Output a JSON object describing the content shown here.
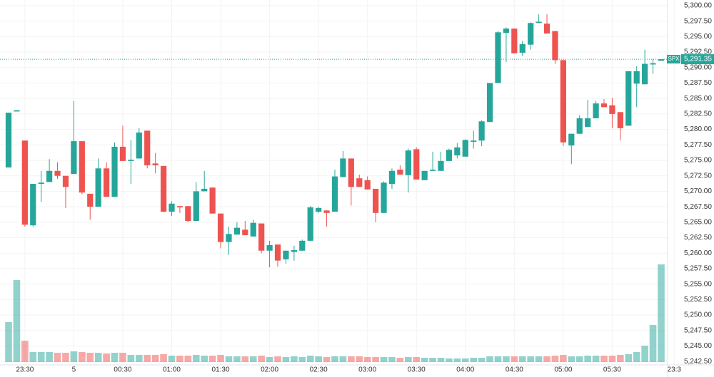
{
  "chart_data": {
    "type": "candlestick",
    "symbol": "SPX",
    "last_price": {
      "value": 5291.35,
      "label": "5,291.35"
    },
    "up_color": "#26a69a",
    "down_color": "#ef5350",
    "grid": true,
    "open": [
      5273.85,
      5282.9,
      5278.2,
      5264.5,
      5271.2,
      5271.5,
      5273.3,
      5272.5,
      5272.8,
      5278.1,
      5269.6,
      5267.5,
      5273.7,
      5269.1,
      5277.2,
      5274.9,
      5275.3,
      5279.8,
      5274.5,
      5274.1,
      5266.7,
      5267.6,
      5267.6,
      5265.2,
      5270.0,
      5270.6,
      5266.4,
      5261.8,
      5263.0,
      5263.8,
      5262.7,
      5264.8,
      5260.4,
      5261.4,
      5259.0,
      5260.2,
      5260.4,
      5262.0,
      5266.7,
      5266.9,
      5266.7,
      5272.3,
      5275.3,
      5272.1,
      5271.8,
      5270.4,
      5266.5,
      5271.2,
      5273.5,
      5272.6,
      5276.8,
      5271.8,
      5273.3,
      5273.3,
      5274.9,
      5275.8,
      5275.6,
      5278.0,
      5278.2,
      5281.2,
      5287.5,
      5295.6,
      5296.3,
      5292.4,
      5293.7,
      5297.2,
      5297.1,
      5295.9,
      5291.2,
      5277.4,
      5279.3,
      5280.4,
      5281.8,
      5284.2,
      5283.9,
      5282.8,
      5280.6,
      5287.4,
      5287.3,
      5290.5,
      5291.1
    ],
    "high": [
      5282.7,
      5283.1,
      5278.2,
      5271.2,
      5273.3,
      5275.2,
      5274.7,
      5272.5,
      5284.6,
      5278.1,
      5269.6,
      5275.3,
      5274.7,
      5277.9,
      5280.6,
      5278.3,
      5280.2,
      5279.8,
      5276.2,
      5274.1,
      5268.4,
      5267.6,
      5267.6,
      5271.5,
      5273.3,
      5270.6,
      5266.4,
      5264.3,
      5265.0,
      5265.2,
      5265.4,
      5264.8,
      5262.0,
      5261.4,
      5260.4,
      5261.2,
      5262.2,
      5267.6,
      5267.5,
      5266.9,
      5273.5,
      5276.5,
      5275.3,
      5272.7,
      5272.4,
      5270.4,
      5271.6,
      5273.7,
      5274.2,
      5276.9,
      5277.1,
      5273.3,
      5276.4,
      5276.4,
      5276.9,
      5277.8,
      5278.4,
      5279.8,
      5281.5,
      5287.5,
      5295.9,
      5296.5,
      5296.3,
      5294.3,
      5297.3,
      5298.6,
      5298.6,
      5295.9,
      5291.2,
      5279.3,
      5282.3,
      5284.8,
      5284.6,
      5284.9,
      5285.1,
      5282.8,
      5289.4,
      5290.2,
      5292.9,
      5291.4,
      5291.35
    ],
    "low": [
      5273.85,
      5282.9,
      5264.3,
      5264.3,
      5268.3,
      5271.5,
      5272.0,
      5267.3,
      5272.8,
      5269.5,
      5265.4,
      5267.5,
      5269.1,
      5269.1,
      5274.9,
      5271.2,
      5275.3,
      5273.7,
      5272.9,
      5266.6,
      5266.0,
      5266.5,
      5265.0,
      5265.2,
      5270.0,
      5266.4,
      5260.8,
      5259.7,
      5263.0,
      5262.9,
      5262.7,
      5260.0,
      5257.7,
      5257.8,
      5258.3,
      5258.8,
      5260.4,
      5262.0,
      5266.5,
      5264.3,
      5266.7,
      5272.3,
      5267.7,
      5270.7,
      5270.3,
      5265.0,
      5266.5,
      5270.4,
      5272.7,
      5269.8,
      5271.9,
      5271.8,
      5273.3,
      5273.3,
      5274.9,
      5275.3,
      5275.6,
      5276.9,
      5277.3,
      5281.2,
      5287.5,
      5290.9,
      5292.3,
      5291.9,
      5292.9,
      5297.2,
      5295.5,
      5290.6,
      5277.3,
      5274.4,
      5279.3,
      5280.4,
      5281.8,
      5283.6,
      5280.2,
      5278.2,
      5280.6,
      5283.6,
      5287.3,
      5289.0,
      5291.1
    ],
    "close": [
      5282.7,
      5283.1,
      5264.6,
      5271.2,
      5271.4,
      5273.3,
      5272.5,
      5270.7,
      5278.1,
      5269.8,
      5267.5,
      5273.7,
      5269.1,
      5277.2,
      5274.9,
      5275.1,
      5279.5,
      5274.2,
      5274.2,
      5266.7,
      5268.0,
      5267.4,
      5265.2,
      5270.0,
      5270.4,
      5266.4,
      5261.8,
      5263.1,
      5264.1,
      5262.9,
      5264.9,
      5260.4,
      5261.3,
      5258.8,
      5260.4,
      5260.5,
      5262.0,
      5267.4,
      5267.3,
      5266.5,
      5272.4,
      5275.3,
      5270.7,
      5270.7,
      5270.3,
      5266.5,
      5271.4,
      5273.3,
      5272.7,
      5276.6,
      5271.9,
      5273.3,
      5273.5,
      5274.9,
      5276.7,
      5277.1,
      5278.3,
      5278.2,
      5281.3,
      5287.5,
      5295.7,
      5296.3,
      5292.3,
      5293.8,
      5297.2,
      5297.4,
      5295.5,
      5291.2,
      5277.9,
      5279.3,
      5281.8,
      5281.8,
      5284.2,
      5283.6,
      5282.5,
      5280.2,
      5289.4,
      5289.4,
      5290.6,
      5290.7,
      5291.35
    ],
    "volume": [
      56,
      115,
      30,
      14,
      14,
      14,
      13,
      13,
      15,
      14,
      13,
      13,
      12,
      13,
      13,
      10,
      10,
      10,
      10,
      11,
      9,
      9,
      9,
      10,
      9,
      9,
      10,
      8,
      8,
      8,
      8,
      9,
      7,
      8,
      7,
      8,
      7,
      9,
      8,
      7,
      8,
      8,
      8,
      8,
      7,
      7,
      7,
      7,
      6,
      7,
      7,
      6,
      6,
      6,
      5,
      5,
      5,
      6,
      6,
      8,
      8,
      8,
      8,
      8,
      8,
      8,
      8,
      9,
      10,
      8,
      8,
      9,
      9,
      9,
      9,
      10,
      11,
      14,
      23,
      52,
      137
    ],
    "xlim": [
      -1.05,
      80.79
    ],
    "xticks": [
      {
        "value": 2,
        "label": "23:30"
      },
      {
        "value": 8,
        "label": "5"
      },
      {
        "value": 14,
        "label": "00:30"
      },
      {
        "value": 20,
        "label": "01:00"
      },
      {
        "value": 26,
        "label": "01:30"
      },
      {
        "value": 32,
        "label": "02:00"
      },
      {
        "value": 38,
        "label": "02:30"
      },
      {
        "value": 44,
        "label": "03:00"
      },
      {
        "value": 50,
        "label": "03:30"
      },
      {
        "value": 56,
        "label": "04:00"
      },
      {
        "value": 62,
        "label": "04:30"
      },
      {
        "value": 68,
        "label": "05:00"
      },
      {
        "value": 74,
        "label": "05:30"
      },
      {
        "value": 81.6,
        "label": "23:3"
      }
    ],
    "ylim": [
      5241.94,
      5300.92
    ],
    "yticks": [
      {
        "value": 5242.5,
        "label": "5,242.50"
      },
      {
        "value": 5245,
        "label": "5,245.00"
      },
      {
        "value": 5247.5,
        "label": "5,247.50"
      },
      {
        "value": 5250,
        "label": "5,250.00"
      },
      {
        "value": 5252.5,
        "label": "5,252.50"
      },
      {
        "value": 5255,
        "label": "5,255.00"
      },
      {
        "value": 5257.5,
        "label": "5,257.50"
      },
      {
        "value": 5260,
        "label": "5,260.00"
      },
      {
        "value": 5262.5,
        "label": "5,262.50"
      },
      {
        "value": 5265,
        "label": "5,265.00"
      },
      {
        "value": 5267.5,
        "label": "5,267.50"
      },
      {
        "value": 5270,
        "label": "5,270.00"
      },
      {
        "value": 5272.5,
        "label": "5,272.50"
      },
      {
        "value": 5275,
        "label": "5,275.00"
      },
      {
        "value": 5277.5,
        "label": "5,277.50"
      },
      {
        "value": 5280,
        "label": "5,280.00"
      },
      {
        "value": 5282.5,
        "label": "5,282.50"
      },
      {
        "value": 5285,
        "label": "5,285.00"
      },
      {
        "value": 5287.5,
        "label": "5,287.50"
      },
      {
        "value": 5290,
        "label": "5,290.00"
      },
      {
        "value": 5292.5,
        "label": "5,292.50"
      },
      {
        "value": 5295,
        "label": "5,295.00"
      },
      {
        "value": 5297.5,
        "label": "5,297.50"
      },
      {
        "value": 5300,
        "label": "5,300.00"
      }
    ]
  }
}
